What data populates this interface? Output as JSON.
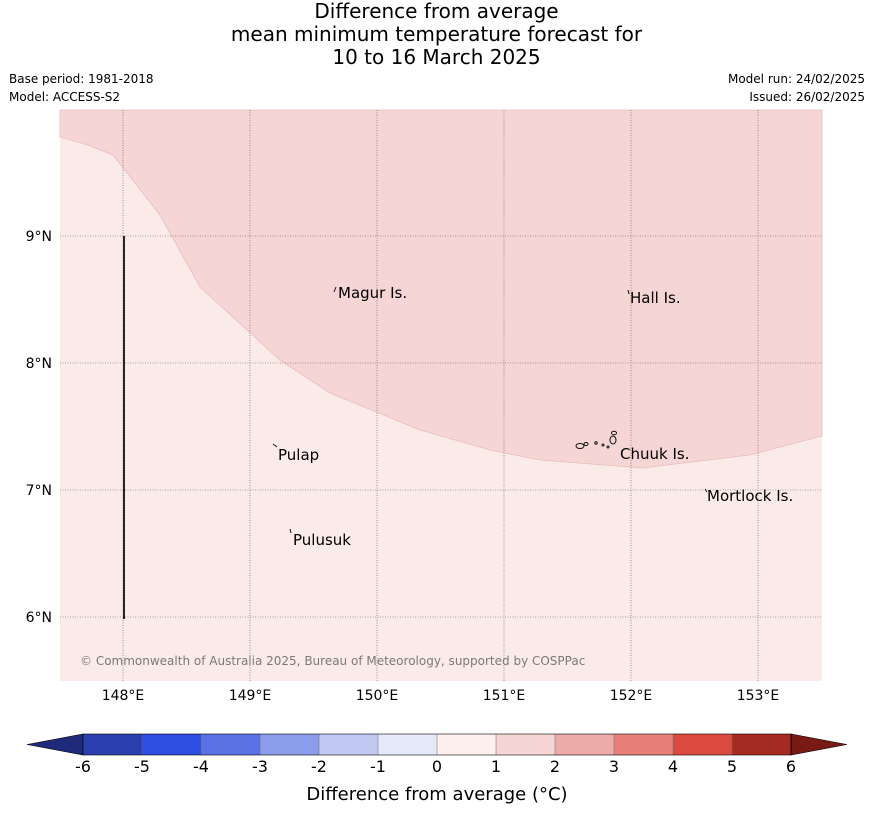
{
  "title": {
    "line1": "Difference from average",
    "line2": "mean minimum temperature forecast for",
    "line3": "10 to 16 March 2025"
  },
  "meta": {
    "base_period": "Base period: 1981-2018",
    "model": "Model: ACCESS-S2",
    "model_run": "Model run: 24/02/2025",
    "issued": "Issued: 26/02/2025"
  },
  "map": {
    "lon_range": [
      147.5,
      153.5
    ],
    "lat_range": [
      5.5,
      10.0
    ],
    "lon_ticks": [
      "148°E",
      "149°E",
      "150°E",
      "151°E",
      "152°E",
      "153°E"
    ],
    "lat_ticks": [
      "9°N",
      "8°N",
      "7°N",
      "6°N"
    ],
    "region_colors": {
      "anomaly_0_to_1": "#fbebe8",
      "anomaly_1_to_2": "#f5d6d4"
    },
    "places": [
      {
        "name": "Magur Is.",
        "lon": 149.7,
        "lat": 8.55
      },
      {
        "name": "Hall Is.",
        "lon": 152.0,
        "lat": 8.5
      },
      {
        "name": "Pulap",
        "lon": 149.2,
        "lat": 7.28
      },
      {
        "name": "Chuuk Is.",
        "lon": 151.9,
        "lat": 7.28
      },
      {
        "name": "Mortlock Is.",
        "lon": 152.6,
        "lat": 6.95
      },
      {
        "name": "Pulusuk",
        "lon": 149.3,
        "lat": 6.62
      }
    ],
    "copyright": "© Commonwealth of Australia 2025, Bureau of Meteorology, supported by COSPPac"
  },
  "colorbar": {
    "labels": [
      "-6",
      "-5",
      "-4",
      "-3",
      "-2",
      "-1",
      "0",
      "1",
      "2",
      "3",
      "4",
      "5",
      "6"
    ],
    "colors": [
      "#2a3eae",
      "#2f4ee2",
      "#5b72e6",
      "#8a9cea",
      "#c1c8f2",
      "#e6e9f8",
      "#fdf0ee",
      "#f5d6d4",
      "#eeaaa8",
      "#e8807a",
      "#db4a3e",
      "#a52a22"
    ],
    "low_extend_color": "#1f2a7a",
    "high_extend_color": "#7a1a14",
    "title": "Difference from average (°C)"
  }
}
